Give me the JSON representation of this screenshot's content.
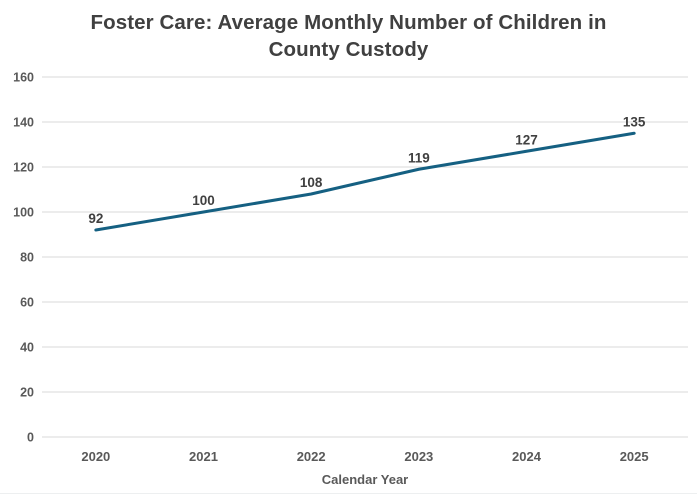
{
  "chart_data": {
    "type": "line",
    "title": "Foster Care: Average Monthly Number of Children in County Custody",
    "xlabel": "Calendar Year",
    "ylabel": "",
    "categories": [
      "2020",
      "2021",
      "2022",
      "2023",
      "2024",
      "2025"
    ],
    "series": [
      {
        "name": "Average Monthly Number of Children",
        "values": [
          92,
          100,
          108,
          119,
          127,
          135
        ]
      }
    ],
    "data_labels": [
      92,
      100,
      108,
      119,
      127,
      135
    ],
    "ylim": [
      0,
      160
    ],
    "ytick_step": 20,
    "yticks": [
      0,
      20,
      40,
      60,
      80,
      100,
      120,
      140,
      160
    ],
    "grid": "horizontal",
    "legend_position": "none",
    "colors": {
      "line": "#156082",
      "title_text": "#404040",
      "tick_text": "#595959",
      "data_label_text": "#404040",
      "gridline": "#d9d9d9",
      "background": "#ffffff"
    }
  }
}
